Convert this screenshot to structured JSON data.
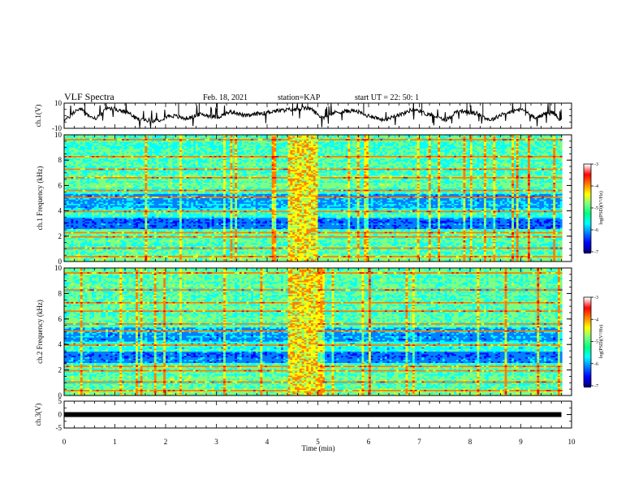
{
  "header": {
    "title": "VLF Spectra",
    "date": "Feb. 18, 2021",
    "station": "station=KAP",
    "start_ut": "start UT =  22: 50: 1"
  },
  "chart_data": [
    {
      "type": "line",
      "panel": "ch1-waveform",
      "ylabel": "ch.1(V)",
      "ylim": [
        -10,
        10
      ],
      "y_tick_labels": [
        "10",
        "-10"
      ],
      "x": [
        0,
        0.3,
        0.6,
        0.9,
        1.2,
        1.5,
        1.8,
        2.1,
        2.4,
        2.7,
        3.0,
        3.3,
        3.6,
        3.9,
        4.2,
        4.5,
        4.8,
        5.1,
        5.4,
        5.7,
        6.0,
        6.3,
        6.6,
        6.9,
        7.2,
        7.5,
        7.8,
        8.1,
        8.4,
        8.7,
        9.0,
        9.3,
        9.6,
        9.8
      ],
      "values": [
        -3,
        5,
        -2,
        6,
        3,
        -3,
        -4,
        0,
        -2,
        1,
        -1,
        3,
        0,
        2,
        4,
        5,
        6,
        -1,
        3,
        4,
        0,
        -3,
        1,
        5,
        1,
        -3,
        4,
        2,
        -3,
        2,
        5,
        -1,
        3,
        -3
      ],
      "color": "#000000"
    },
    {
      "type": "heatmap",
      "panel": "ch1-spectrogram",
      "ylabel": "ch.1 Frequency (kHz)",
      "xlim": [
        0,
        10
      ],
      "ylim": [
        0,
        10
      ],
      "y_tick_labels": [
        "0",
        "2",
        "4",
        "6",
        "8",
        "10"
      ],
      "colorbar": {
        "label": "log(PSD)(V²/Hz)",
        "range": [
          -7,
          -3
        ],
        "tick_labels": [
          "-3",
          "-4",
          "-5",
          "-6",
          "-7"
        ]
      },
      "bright_interval_min": [
        4.4,
        5.0
      ],
      "data_end_min": 9.8
    },
    {
      "type": "heatmap",
      "panel": "ch2-spectrogram",
      "ylabel": "ch.2 Frequency (kHz)",
      "xlim": [
        0,
        10
      ],
      "ylim": [
        0,
        10
      ],
      "y_tick_labels": [
        "0",
        "2",
        "4",
        "6",
        "8",
        "10"
      ],
      "colorbar": {
        "label": "log(PSD)(V²/Hz)",
        "range": [
          -7,
          -3
        ],
        "tick_labels": [
          "-3",
          "-4",
          "-5",
          "-6",
          "-7"
        ]
      },
      "bright_interval_min": [
        4.4,
        5.0
      ],
      "data_end_min": 9.8
    },
    {
      "type": "line",
      "panel": "ch3-waveform",
      "ylabel": "ch.3(V)",
      "ylim": [
        -5,
        5
      ],
      "y_tick_labels": [
        "5",
        "0",
        "-5"
      ],
      "x": [
        0,
        9.8
      ],
      "values": [
        0,
        0
      ],
      "color": "#000000"
    }
  ],
  "x_axis": {
    "label": "Time (min)",
    "range": [
      0,
      10
    ],
    "tick_labels": [
      "0",
      "1",
      "2",
      "3",
      "4",
      "5",
      "6",
      "7",
      "8",
      "9",
      "10"
    ]
  },
  "colormap": [
    "#00007f",
    "#0000ff",
    "#007fff",
    "#00ffff",
    "#7fff7f",
    "#ffff00",
    "#ff7f00",
    "#ff0000",
    "#ffffff"
  ]
}
